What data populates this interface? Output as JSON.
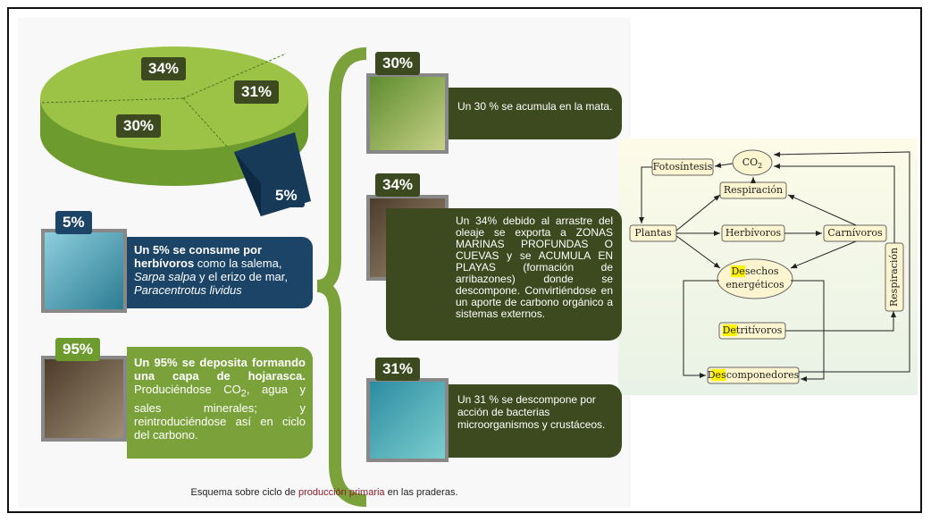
{
  "pie": {
    "labels": [
      "34%",
      "31%",
      "30%",
      "5%"
    ]
  },
  "consumo": {
    "badge": "5%",
    "bold": "Un 5% se consume por herbívoros",
    "text1": " como la salema, ",
    "italic1": "Sarpa salpa",
    "text2": " y el erizo de mar, ",
    "italic2": "Paracentrotus lividus"
  },
  "hojarasca": {
    "badge": "95%",
    "bold": "Un 95% se deposita formando una capa de hojarasca.",
    "text1": " Produciéndose CO",
    "sub": "2",
    "text2": ", agua y sales minerales; y reintroduciéndose así en ciclo del carbono."
  },
  "mata": {
    "badge": "30%",
    "text": "Un 30 % se acumula en la mata."
  },
  "arrastre": {
    "badge": "34%",
    "text": "Un 34% debido al arrastre del oleaje se exporta a ZONAS MARINAS PROFUNDAS O CUEVAS y se ACUMULA EN PLAYAS (formación de arribazones) donde se descompone. Convirtiéndose en un aporte de carbono orgánico a sistemas externos."
  },
  "descompone": {
    "badge": "31%",
    "text": "Un 31 % se descompone por acción de bacterias microorganismos y crustáceos."
  },
  "caption": {
    "before": "Esquema sobre ciclo de ",
    "highlight": "producción primaria",
    "after": " en las praderas."
  },
  "cycle": {
    "co2": {
      "text": "CO",
      "sub": "2"
    },
    "fotosintesis": "Fotosíntesis",
    "respiracion": "Respiración",
    "plantas": "Plantas",
    "herbivoros": "Herbívoros",
    "carnivoros": "Carnívoros",
    "desechos": {
      "highlight": "De",
      "rest": "sechos",
      "line2": "energéticos"
    },
    "detritivoros": {
      "highlight": "De",
      "rest": "tritívoros"
    },
    "descomponedores": {
      "highlight": "De",
      "rest": "scomponedores"
    },
    "respiracion_lateral": "Respiración"
  }
}
